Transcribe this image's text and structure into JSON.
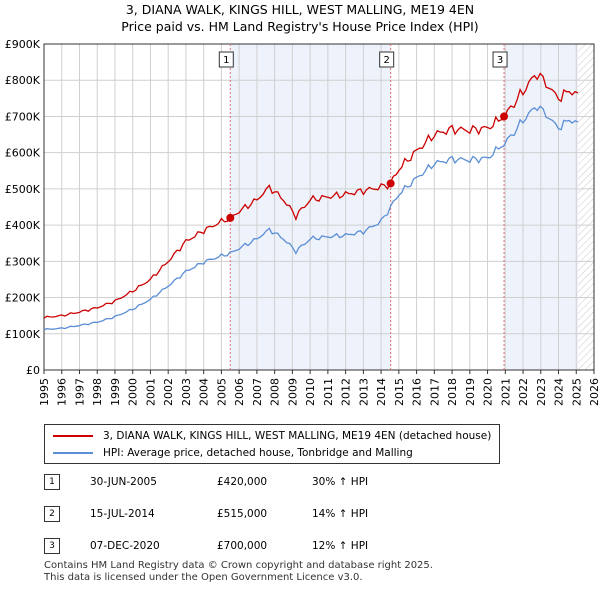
{
  "header": {
    "title": "3, DIANA WALK, KINGS HILL, WEST MALLING, ME19 4EN",
    "subtitle": "Price paid vs. HM Land Registry's House Price Index (HPI)"
  },
  "colors": {
    "property": "#cc0000",
    "hpi": "#5b8ed6",
    "shade": "#eef2fb",
    "grid": "#d0d0d0",
    "marker_line": "#e07070"
  },
  "chart_data": {
    "type": "line",
    "title": "3, DIANA WALK, KINGS HILL, WEST MALLING, ME19 4EN",
    "subtitle": "Price paid vs. HM Land Registry's House Price Index (HPI)",
    "xlabel": "",
    "ylabel": "",
    "xlim": [
      1995,
      2026
    ],
    "ylim": [
      0,
      900000
    ],
    "yticks": [
      0,
      100000,
      200000,
      300000,
      400000,
      500000,
      600000,
      700000,
      800000,
      900000
    ],
    "ytick_labels": [
      "£0",
      "£100K",
      "£200K",
      "£300K",
      "£400K",
      "£500K",
      "£600K",
      "£700K",
      "£800K",
      "£900K"
    ],
    "xtick_labels": [
      "1995",
      "1996",
      "1997",
      "1998",
      "1999",
      "2000",
      "2001",
      "2002",
      "2003",
      "2004",
      "2005",
      "2006",
      "2007",
      "2008",
      "2009",
      "2010",
      "2011",
      "2012",
      "2013",
      "2014",
      "2015",
      "2016",
      "2017",
      "2018",
      "2019",
      "2020",
      "2021",
      "2022",
      "2023",
      "2024",
      "2025",
      "2026"
    ],
    "grid": true,
    "x": [
      1995,
      1996,
      1997,
      1998,
      1999,
      2000,
      2001,
      2002,
      2003,
      2004,
      2005,
      2005.5,
      2006,
      2007,
      2007.7,
      2008.5,
      2009.2,
      2010,
      2011,
      2012,
      2013,
      2014,
      2014.54,
      2015,
      2016,
      2017,
      2018,
      2019,
      2020,
      2020.93,
      2021.5,
      2022,
      2022.8,
      2023.3,
      2024,
      2024.6,
      2025.1
    ],
    "series": [
      {
        "name": "3, DIANA WALK, KINGS HILL, WEST MALLING, ME19 4EN (detached house)",
        "values": [
          145000,
          150000,
          160000,
          172000,
          190000,
          218000,
          250000,
          300000,
          355000,
          385000,
          410000,
          420000,
          438000,
          470000,
          505000,
          470000,
          425000,
          470000,
          478000,
          485000,
          495000,
          505000,
          515000,
          555000,
          605000,
          650000,
          665000,
          662000,
          668000,
          700000,
          735000,
          770000,
          820000,
          790000,
          750000,
          770000,
          765000
        ]
      },
      {
        "name": "HPI: Average price, detached house, Tonbridge and Malling",
        "values": [
          112000,
          115000,
          123000,
          132000,
          147000,
          168000,
          195000,
          232000,
          272000,
          298000,
          315000,
          322000,
          336000,
          362000,
          388000,
          362000,
          328000,
          362000,
          368000,
          372000,
          382000,
          410000,
          450000,
          485000,
          530000,
          570000,
          582000,
          580000,
          585000,
          625000,
          655000,
          690000,
          730000,
          705000,
          668000,
          690000,
          685000
        ]
      }
    ],
    "legend": "below",
    "annotations": [
      {
        "label": "1",
        "x": 2005.5
      },
      {
        "label": "2",
        "x": 2014.54
      },
      {
        "label": "3",
        "x": 2020.93
      }
    ]
  },
  "legend": {
    "items": [
      {
        "label": "3, DIANA WALK, KINGS HILL, WEST MALLING, ME19 4EN (detached house)"
      },
      {
        "label": "HPI: Average price, detached house, Tonbridge and Malling"
      }
    ]
  },
  "sales": [
    {
      "num": "1",
      "date": "30-JUN-2005",
      "price": "£420,000",
      "hpi": "30% ↑ HPI"
    },
    {
      "num": "2",
      "date": "15-JUL-2014",
      "price": "£515,000",
      "hpi": "14% ↑ HPI"
    },
    {
      "num": "3",
      "date": "07-DEC-2020",
      "price": "£700,000",
      "hpi": "12% ↑ HPI"
    }
  ],
  "footer": {
    "line1": "Contains HM Land Registry data © Crown copyright and database right 2025.",
    "line2": "This data is licensed under the Open Government Licence v3.0."
  }
}
